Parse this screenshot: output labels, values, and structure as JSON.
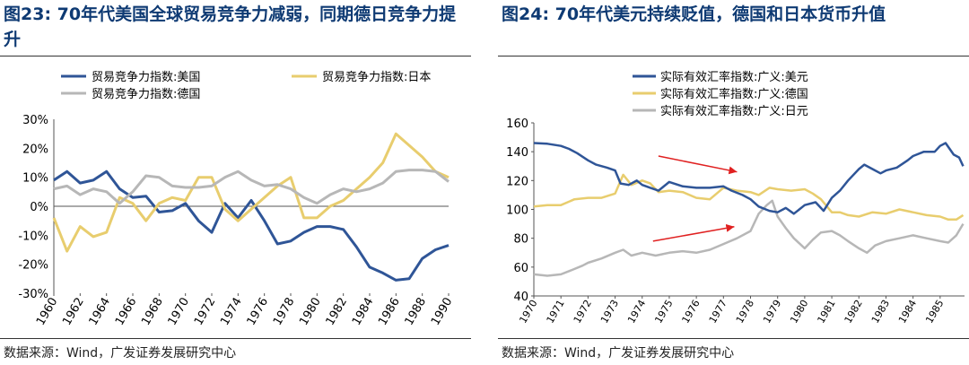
{
  "charts": {
    "left": {
      "figure_title": "图23: 70年代美国全球贸易竞争力减弱，同期德日竞争力提升",
      "source": "数据来源：Wind，广发证券发展研究中心"
    },
    "right": {
      "figure_title": "图24:  70年代美元持续贬值，德国和日本货币升值",
      "source": "数据来源：Wind，广发证券发展研究中心"
    }
  },
  "chart_data": [
    {
      "type": "line",
      "title": "图23: 70年代美国全球贸易竞争力减弱，同期德日竞争力提升",
      "x": [
        1960,
        1961,
        1962,
        1963,
        1964,
        1965,
        1966,
        1967,
        1968,
        1969,
        1970,
        1971,
        1972,
        1973,
        1974,
        1975,
        1976,
        1977,
        1978,
        1979,
        1980,
        1981,
        1982,
        1983,
        1984,
        1985,
        1986,
        1987,
        1988,
        1989,
        1990
      ],
      "xticks": [
        "1960",
        "1962",
        "1964",
        "1966",
        "1968",
        "1970",
        "1972",
        "1974",
        "1976",
        "1978",
        "1980",
        "1982",
        "1984",
        "1986",
        "1988",
        "1990"
      ],
      "ylim": [
        -30,
        30
      ],
      "yticks": [
        -30,
        -20,
        -10,
        0,
        10,
        20,
        30
      ],
      "ytick_labels": [
        "-30%",
        "-20%",
        "-10%",
        "0%",
        "10%",
        "20%",
        "30%"
      ],
      "legend_position": "top",
      "series": [
        {
          "name": "贸易竞争力指数:美国",
          "color": "#2f5597",
          "values": [
            9,
            12,
            8,
            9,
            12,
            6,
            3,
            3.5,
            -2,
            -1.5,
            1,
            -5,
            -9,
            1,
            -4,
            2,
            -5,
            -13,
            -12,
            -9,
            -7,
            -7,
            -8,
            -14,
            -21,
            -23,
            -25.5,
            -25,
            -18,
            -15,
            -13.5
          ]
        },
        {
          "name": "贸易竞争力指数:日本",
          "color": "#e8cd6e",
          "values": [
            -4,
            -15.5,
            -7,
            -10.5,
            -9,
            3,
            1,
            -5,
            1,
            3,
            2,
            10,
            10,
            -1,
            -5,
            -1,
            3,
            7,
            10,
            -4,
            -4,
            0,
            2,
            6,
            10,
            15,
            25,
            21,
            17,
            12,
            10
          ]
        },
        {
          "name": "贸易竞争力指数:德国",
          "color": "#b7b7b7",
          "values": [
            6,
            7,
            4,
            6,
            5,
            1,
            5,
            10.5,
            10,
            7,
            6.5,
            6.5,
            7,
            10,
            12,
            9,
            7,
            7.5,
            6,
            3,
            1,
            4,
            6,
            5,
            6,
            8,
            12,
            12.5,
            12.5,
            12,
            8.5
          ]
        }
      ]
    },
    {
      "type": "line",
      "title": "图24:  70年代美元持续贬值，德国和日本货币升值",
      "x_range": [
        1970,
        1985.9
      ],
      "xticks": [
        "1970",
        "1971",
        "1972",
        "1973",
        "1974",
        "1975",
        "1976",
        "1977",
        "1978",
        "1979",
        "1980",
        "1981",
        "1982",
        "1983",
        "1984",
        "1985"
      ],
      "ylim": [
        40,
        160
      ],
      "yticks": [
        40,
        60,
        80,
        100,
        120,
        140,
        160
      ],
      "legend_position": "top-left",
      "series": [
        {
          "name": "实际有效汇率指数:广义:美元",
          "color": "#2f5597",
          "points": [
            [
              1970,
              146
            ],
            [
              1970.5,
              145.5
            ],
            [
              1971,
              144
            ],
            [
              1971.3,
              142
            ],
            [
              1971.6,
              139
            ],
            [
              1972,
              134
            ],
            [
              1972.3,
              131
            ],
            [
              1972.7,
              129
            ],
            [
              1973,
              127
            ],
            [
              1973.2,
              118
            ],
            [
              1973.5,
              117
            ],
            [
              1973.8,
              120
            ],
            [
              1974,
              117
            ],
            [
              1974.3,
              115
            ],
            [
              1974.6,
              113
            ],
            [
              1975,
              119
            ],
            [
              1975.5,
              116
            ],
            [
              1976,
              115
            ],
            [
              1976.5,
              115
            ],
            [
              1977,
              116
            ],
            [
              1977.3,
              113
            ],
            [
              1977.7,
              110
            ],
            [
              1978,
              107
            ],
            [
              1978.3,
              102
            ],
            [
              1978.7,
              99
            ],
            [
              1979,
              98
            ],
            [
              1979.3,
              101
            ],
            [
              1979.6,
              97
            ],
            [
              1980,
              103
            ],
            [
              1980.4,
              105
            ],
            [
              1980.7,
              99
            ],
            [
              1981,
              108
            ],
            [
              1981.3,
              113
            ],
            [
              1981.6,
              120
            ],
            [
              1982,
              128
            ],
            [
              1982.2,
              131
            ],
            [
              1982.5,
              128
            ],
            [
              1982.8,
              125
            ],
            [
              1983,
              127
            ],
            [
              1983.4,
              129
            ],
            [
              1983.8,
              134
            ],
            [
              1984,
              137
            ],
            [
              1984.4,
              140
            ],
            [
              1984.8,
              140
            ],
            [
              1985,
              144
            ],
            [
              1985.2,
              146
            ],
            [
              1985.5,
              138
            ],
            [
              1985.7,
              136
            ],
            [
              1985.85,
              130
            ]
          ]
        },
        {
          "name": "实际有效汇率指数:广义:德国",
          "color": "#e8cd6e",
          "points": [
            [
              1970,
              102
            ],
            [
              1970.5,
              103
            ],
            [
              1971,
              103
            ],
            [
              1971.5,
              107
            ],
            [
              1972,
              108
            ],
            [
              1972.5,
              108
            ],
            [
              1973,
              111
            ],
            [
              1973.3,
              124
            ],
            [
              1973.6,
              117
            ],
            [
              1974,
              120
            ],
            [
              1974.3,
              118
            ],
            [
              1974.6,
              112
            ],
            [
              1975,
              113
            ],
            [
              1975.5,
              112
            ],
            [
              1976,
              108
            ],
            [
              1976.5,
              107
            ],
            [
              1977,
              115
            ],
            [
              1977.5,
              113
            ],
            [
              1978,
              112
            ],
            [
              1978.3,
              110
            ],
            [
              1978.7,
              115
            ],
            [
              1979,
              114
            ],
            [
              1979.5,
              113
            ],
            [
              1980,
              114
            ],
            [
              1980.3,
              111
            ],
            [
              1980.6,
              107
            ],
            [
              1981,
              98
            ],
            [
              1981.3,
              98
            ],
            [
              1981.6,
              96
            ],
            [
              1982,
              95
            ],
            [
              1982.5,
              98
            ],
            [
              1983,
              97
            ],
            [
              1983.5,
              100
            ],
            [
              1984,
              98
            ],
            [
              1984.5,
              96
            ],
            [
              1985,
              95
            ],
            [
              1985.3,
              93
            ],
            [
              1985.6,
              93
            ],
            [
              1985.85,
              96
            ]
          ]
        },
        {
          "name": "实际有效汇率指数:广义:日元",
          "color": "#b7b7b7",
          "points": [
            [
              1970,
              55
            ],
            [
              1970.5,
              54
            ],
            [
              1971,
              55
            ],
            [
              1971.4,
              58
            ],
            [
              1971.8,
              61
            ],
            [
              1972,
              63
            ],
            [
              1972.5,
              66
            ],
            [
              1973,
              70
            ],
            [
              1973.3,
              72
            ],
            [
              1973.6,
              68
            ],
            [
              1974,
              70
            ],
            [
              1974.5,
              68
            ],
            [
              1975,
              70
            ],
            [
              1975.5,
              71
            ],
            [
              1976,
              70
            ],
            [
              1976.5,
              72
            ],
            [
              1977,
              76
            ],
            [
              1977.5,
              80
            ],
            [
              1978,
              85
            ],
            [
              1978.3,
              97
            ],
            [
              1978.6,
              103
            ],
            [
              1978.8,
              106
            ],
            [
              1979,
              95
            ],
            [
              1979.3,
              87
            ],
            [
              1979.6,
              80
            ],
            [
              1980,
              73
            ],
            [
              1980.3,
              79
            ],
            [
              1980.6,
              84
            ],
            [
              1981,
              85
            ],
            [
              1981.3,
              82
            ],
            [
              1981.6,
              78
            ],
            [
              1982,
              73
            ],
            [
              1982.3,
              70
            ],
            [
              1982.6,
              75
            ],
            [
              1983,
              78
            ],
            [
              1983.5,
              80
            ],
            [
              1984,
              82
            ],
            [
              1984.5,
              80
            ],
            [
              1985,
              78
            ],
            [
              1985.3,
              77
            ],
            [
              1985.6,
              82
            ],
            [
              1985.85,
              90
            ]
          ]
        }
      ],
      "annotations": [
        {
          "type": "arrow",
          "description": "downward trend arrow",
          "color": "#e02020",
          "from": [
            1974.6,
            137
          ],
          "to": [
            1977.5,
            126
          ]
        },
        {
          "type": "arrow",
          "description": "upward trend arrow",
          "color": "#e02020",
          "from": [
            1974.4,
            78
          ],
          "to": [
            1977.4,
            88
          ]
        }
      ]
    }
  ]
}
